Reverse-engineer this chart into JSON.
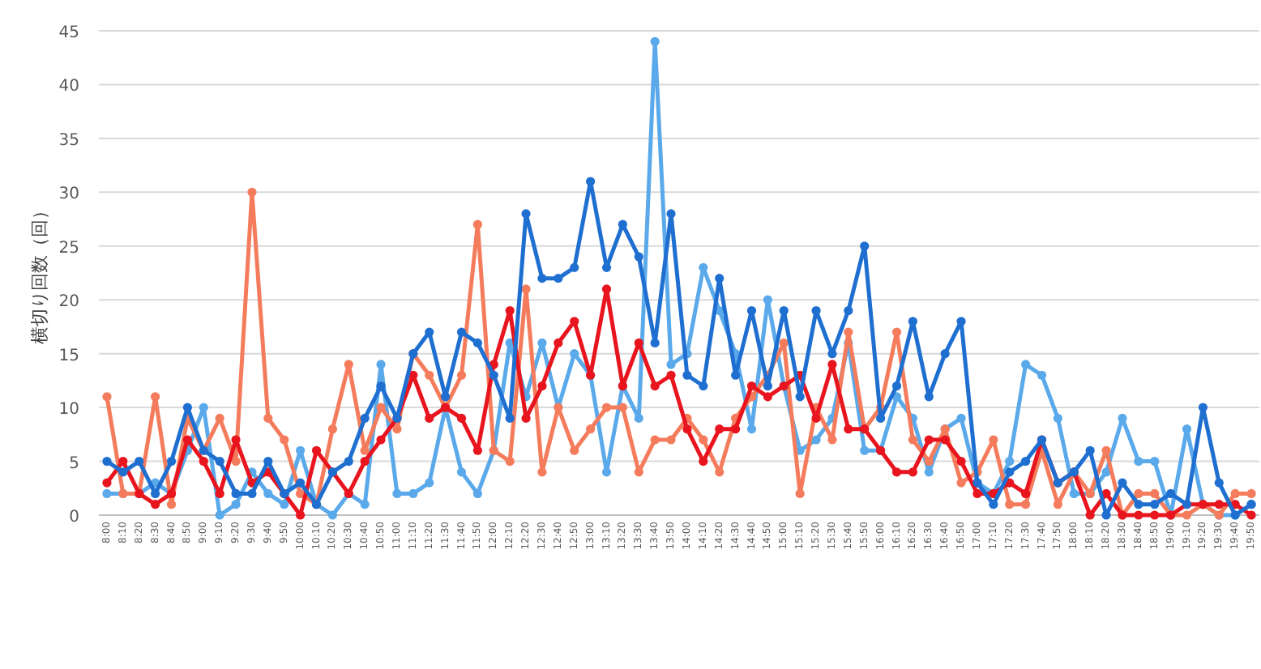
{
  "chart_data": {
    "type": "line",
    "ylabel": "横切り回数（回）",
    "categories": [
      "8:00",
      "8:10",
      "8:20",
      "8:30",
      "8:40",
      "8:50",
      "9:00",
      "9:10",
      "9:20",
      "9:30",
      "9:40",
      "9:50",
      "10:00",
      "10:10",
      "10:20",
      "10:30",
      "10:40",
      "10:50",
      "11:00",
      "11:10",
      "11:20",
      "11:30",
      "11:40",
      "11:50",
      "12:00",
      "12:10",
      "12:20",
      "12:30",
      "12:40",
      "12:50",
      "13:00",
      "13:10",
      "13:20",
      "13:30",
      "13:40",
      "13:50",
      "14:00",
      "14:10",
      "14:20",
      "14:30",
      "14:40",
      "14:50",
      "15:00",
      "15:10",
      "15:20",
      "15:30",
      "15:40",
      "15:50",
      "16:00",
      "16:10",
      "16:20",
      "16:30",
      "16:40",
      "16:50",
      "17:00",
      "17:10",
      "17:20",
      "17:30",
      "17:40",
      "17:50",
      "18:00",
      "18:10",
      "18:20",
      "18:30",
      "18:40",
      "18:50",
      "19:00",
      "19:10",
      "19:20",
      "19:30",
      "19:40",
      "19:50"
    ],
    "series": [
      {
        "color": "#5aa9ea",
        "values": [
          2,
          2,
          2,
          3,
          2,
          6,
          10,
          0,
          1,
          4,
          2,
          1,
          6,
          1,
          0,
          2,
          1,
          14,
          2,
          2,
          3,
          10,
          4,
          2,
          6,
          16,
          11,
          16,
          10,
          15,
          13,
          4,
          12,
          9,
          44,
          14,
          15,
          23,
          19,
          15,
          8,
          20,
          12,
          6,
          7,
          9,
          16,
          6,
          6,
          11,
          9,
          4,
          8,
          9,
          3,
          2,
          5,
          14,
          13,
          9,
          2,
          2,
          4,
          9,
          5,
          5,
          0,
          8,
          1,
          0,
          0,
          1
        ]
      },
      {
        "color": "#f47c5c",
        "values": [
          11,
          2,
          2,
          11,
          1,
          9,
          6,
          9,
          5,
          30,
          9,
          7,
          2,
          1,
          8,
          14,
          6,
          10,
          8,
          15,
          13,
          10,
          13,
          27,
          6,
          5,
          21,
          4,
          10,
          6,
          8,
          10,
          10,
          4,
          7,
          7,
          9,
          7,
          4,
          9,
          11,
          13,
          16,
          2,
          10,
          7,
          17,
          8,
          10,
          17,
          7,
          5,
          8,
          3,
          4,
          7,
          1,
          1,
          6,
          1,
          4,
          2,
          6,
          0,
          2,
          2,
          0,
          0,
          1,
          0,
          2,
          2
        ]
      },
      {
        "color": "#e8141e",
        "values": [
          3,
          5,
          2,
          1,
          2,
          7,
          5,
          2,
          7,
          3,
          4,
          2,
          0,
          6,
          4,
          2,
          5,
          7,
          9,
          13,
          9,
          10,
          9,
          6,
          14,
          19,
          9,
          12,
          16,
          18,
          13,
          21,
          12,
          16,
          12,
          13,
          8,
          5,
          8,
          8,
          12,
          11,
          12,
          13,
          9,
          14,
          8,
          8,
          6,
          4,
          4,
          7,
          7,
          5,
          2,
          2,
          3,
          2,
          7,
          3,
          4,
          0,
          2,
          0,
          0,
          0,
          0,
          1,
          1,
          1,
          1,
          0
        ]
      },
      {
        "color": "#1f6fd1",
        "values": [
          5,
          4,
          5,
          2,
          5,
          10,
          6,
          5,
          2,
          2,
          5,
          2,
          3,
          1,
          4,
          5,
          9,
          12,
          9,
          15,
          17,
          11,
          17,
          16,
          13,
          9,
          28,
          22,
          22,
          23,
          31,
          23,
          27,
          24,
          16,
          28,
          13,
          12,
          22,
          13,
          19,
          12,
          19,
          11,
          19,
          15,
          19,
          25,
          9,
          12,
          18,
          11,
          15,
          18,
          3,
          1,
          4,
          5,
          7,
          3,
          4,
          6,
          0,
          3,
          1,
          1,
          2,
          1,
          10,
          3,
          0,
          1
        ]
      }
    ],
    "ylim": [
      0,
      45
    ],
    "yticks": [
      0,
      5,
      10,
      15,
      20,
      25,
      30,
      35,
      40,
      45
    ],
    "grid": "y",
    "marker": "circle",
    "line_style": "solid"
  }
}
